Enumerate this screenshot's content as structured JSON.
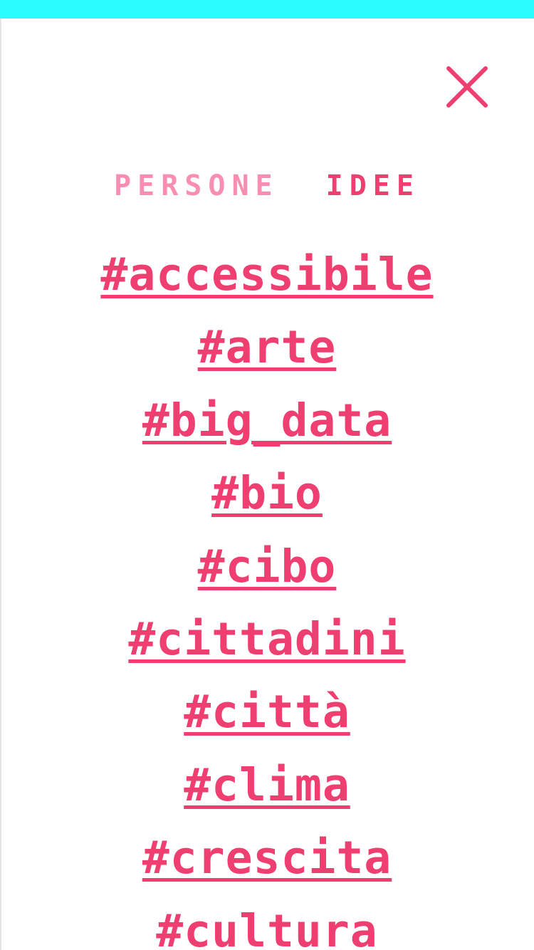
{
  "colors": {
    "top_bar": "#2afcff",
    "accent": "#ef3e70",
    "accent_light": "#f98fb0",
    "background": "#ffffff"
  },
  "close": {
    "icon": "close-icon"
  },
  "tabs": [
    {
      "label": "PERSONE",
      "active": false
    },
    {
      "label": "IDEE",
      "active": true
    }
  ],
  "tags": [
    "#accessibile",
    "#arte",
    "#big_data",
    "#bio",
    "#cibo",
    "#cittadini",
    "#città",
    "#clima",
    "#crescita",
    "#cultura"
  ]
}
